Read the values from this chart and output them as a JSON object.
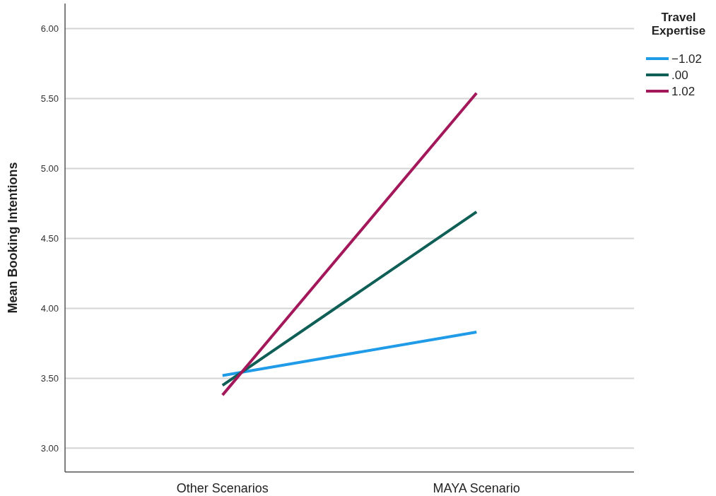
{
  "chart_data": {
    "type": "line",
    "ylabel": "Mean Booking Intentions",
    "legend_title": "Travel Expertise",
    "categories": [
      "Other Scenarios",
      "MAYA Scenario"
    ],
    "series": [
      {
        "name": "−1.02",
        "color": "#1f9be8",
        "values": [
          3.52,
          3.83
        ]
      },
      {
        "name": ".00",
        "color": "#0f5f56",
        "values": [
          3.45,
          4.69
        ]
      },
      {
        "name": "1.02",
        "color": "#a3185a",
        "values": [
          3.38,
          5.54
        ]
      }
    ],
    "ylim": [
      2.83,
      6.18
    ],
    "yticks": [
      {
        "value": 3,
        "label": "3.00"
      },
      {
        "value": 3.5,
        "label": "3.50"
      },
      {
        "value": 4,
        "label": "4.00"
      },
      {
        "value": 4.5,
        "label": "4.50"
      },
      {
        "value": 5,
        "label": "5.00"
      },
      {
        "value": 5.5,
        "label": "5.50"
      },
      {
        "value": 6,
        "label": "6.00"
      }
    ],
    "grid": "y",
    "legend": "top right",
    "marker": "none",
    "line_style": "solid"
  }
}
